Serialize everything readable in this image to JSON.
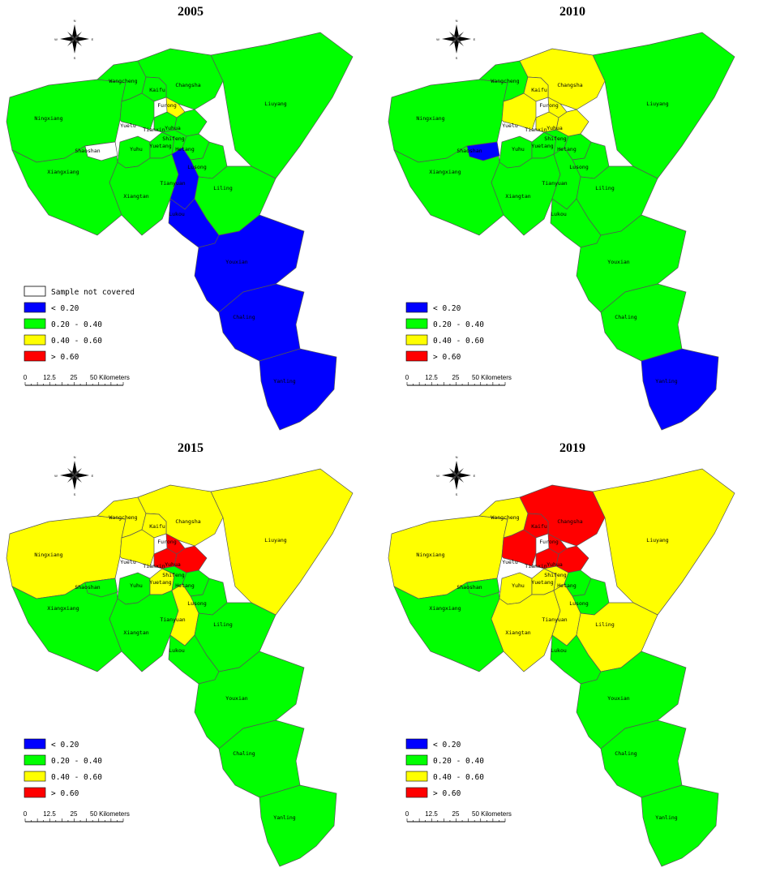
{
  "colors": {
    "c0": "#0000FF",
    "c1": "#00FF00",
    "c2": "#FFFF00",
    "c3": "#FF0000",
    "na": "#FFFFFF"
  },
  "legend": {
    "not_covered": "Sample not covered",
    "classes": [
      "< 0.20",
      "0.20 - 0.40",
      "0.40 - 0.60",
      "> 0.60"
    ]
  },
  "scale": {
    "ticks": [
      "0",
      "12.5",
      "25",
      "50 Kilometers"
    ]
  },
  "compass": {
    "n": "N",
    "s": "S",
    "e": "E",
    "w": "W"
  },
  "district_names": {
    "wangcheng": "Wangcheng",
    "kaifu": "Kaifu",
    "changsha": "Changsha",
    "liuyang": "Liuyang",
    "ningxiang": "Ningxiang",
    "furong": "Furong",
    "yuelu": "Yuelu",
    "tianxin": "Tianxin",
    "yuhu": "Yuhu",
    "yuhua": "Yuhua",
    "shaoshan": "Shaoshan",
    "yuetang": "Yuetang",
    "shifeng": "Shifeng",
    "hetang": "Hetang",
    "xiangxiang": "Xiangxiang",
    "lusong": "Lusong",
    "xiangtan": "Xiangtan",
    "liling": "Liling",
    "tianyuan": "Tianyuan",
    "lukou": "Lukou",
    "youxian": "Youxian",
    "chaling": "Chaling",
    "yanling": "Yanling"
  },
  "maps": [
    {
      "year": "2005",
      "has_not_covered_legend": true,
      "classes": {
        "ningxiang": 1,
        "wangcheng": 1,
        "kaifu": 1,
        "changsha": 1,
        "liuyang": 1,
        "yuelu": 1,
        "furong": 2,
        "tianxin": 1,
        "yuhua": 1,
        "shaoshan": -1,
        "yuhu": 1,
        "yuetang": 1,
        "shifeng": 1,
        "hetang": 1,
        "xiangxiang": 1,
        "lusong": 1,
        "xiangtan": 1,
        "tianyuan": 0,
        "liling": 1,
        "lukou": 0,
        "youxian": 0,
        "chaling": 0,
        "yanling": 0
      }
    },
    {
      "year": "2010",
      "has_not_covered_legend": false,
      "classes": {
        "ningxiang": 1,
        "wangcheng": 1,
        "kaifu": 2,
        "changsha": 2,
        "liuyang": 1,
        "yuelu": 2,
        "furong": 2,
        "tianxin": 2,
        "yuhua": 2,
        "shaoshan": 0,
        "yuhu": 1,
        "yuetang": 1,
        "shifeng": 1,
        "hetang": 1,
        "xiangxiang": 1,
        "lusong": 1,
        "xiangtan": 1,
        "tianyuan": 1,
        "liling": 1,
        "lukou": 1,
        "youxian": 1,
        "chaling": 1,
        "yanling": 0
      }
    },
    {
      "year": "2015",
      "has_not_covered_legend": false,
      "classes": {
        "ningxiang": 2,
        "wangcheng": 2,
        "kaifu": 2,
        "changsha": 2,
        "liuyang": 2,
        "yuelu": 2,
        "furong": 3,
        "tianxin": 3,
        "yuhua": 3,
        "shaoshan": 1,
        "yuhu": 1,
        "yuetang": 2,
        "shifeng": 1,
        "hetang": 1,
        "xiangxiang": 1,
        "lusong": 1,
        "xiangtan": 1,
        "tianyuan": 2,
        "liling": 1,
        "lukou": 1,
        "youxian": 1,
        "chaling": 1,
        "yanling": 1
      }
    },
    {
      "year": "2019",
      "has_not_covered_legend": false,
      "classes": {
        "ningxiang": 2,
        "wangcheng": 2,
        "kaifu": 3,
        "changsha": 3,
        "liuyang": 2,
        "yuelu": 3,
        "furong": 3,
        "tianxin": 3,
        "yuhua": 3,
        "shaoshan": 1,
        "yuhu": 2,
        "yuetang": 2,
        "shifeng": 2,
        "hetang": 1,
        "xiangxiang": 1,
        "lusong": 1,
        "xiangtan": 2,
        "tianyuan": 2,
        "liling": 2,
        "lukou": 1,
        "youxian": 1,
        "chaling": 1,
        "yanling": 1
      }
    }
  ]
}
